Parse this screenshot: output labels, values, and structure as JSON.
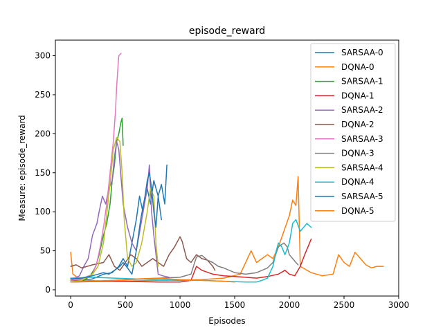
{
  "chart_data": {
    "type": "line",
    "title": "episode_reward",
    "xlabel": "Episodes",
    "ylabel": "Measure: episode_reward",
    "xlim": [
      -140,
      3000
    ],
    "ylim": [
      -8,
      320
    ],
    "xticks": [
      0,
      500,
      1000,
      1500,
      2000,
      2500,
      3000
    ],
    "yticks": [
      0,
      50,
      100,
      150,
      200,
      250,
      300
    ],
    "grid": false,
    "legend_placement": "top-right",
    "series": [
      {
        "name": "SARSAA-0",
        "color": "#1f77b4",
        "points": [
          [
            0,
            12
          ],
          [
            100,
            12
          ],
          [
            200,
            14
          ],
          [
            300,
            20
          ],
          [
            380,
            22
          ],
          [
            440,
            30
          ],
          [
            480,
            40
          ],
          [
            520,
            30
          ],
          [
            560,
            60
          ],
          [
            600,
            90
          ],
          [
            630,
            120
          ],
          [
            660,
            100
          ],
          [
            700,
            130
          ],
          [
            730,
            110
          ],
          [
            760,
            140
          ],
          [
            800,
            120
          ],
          [
            830,
            135
          ],
          [
            860,
            110
          ],
          [
            880,
            160
          ]
        ]
      },
      {
        "name": "DQNA-0",
        "color": "#ff7f0e",
        "points": [
          [
            0,
            48
          ],
          [
            20,
            20
          ],
          [
            100,
            12
          ],
          [
            400,
            11
          ],
          [
            800,
            12
          ],
          [
            1200,
            13
          ],
          [
            1400,
            15
          ],
          [
            1550,
            20
          ],
          [
            1650,
            50
          ],
          [
            1700,
            35
          ],
          [
            1800,
            45
          ],
          [
            1850,
            40
          ],
          [
            1900,
            55
          ],
          [
            1950,
            75
          ],
          [
            2000,
            95
          ],
          [
            2030,
            115
          ],
          [
            2060,
            108
          ],
          [
            2080,
            145
          ],
          [
            2100,
            30
          ],
          [
            2200,
            22
          ],
          [
            2300,
            18
          ],
          [
            2400,
            20
          ],
          [
            2450,
            45
          ],
          [
            2500,
            35
          ],
          [
            2550,
            30
          ],
          [
            2600,
            48
          ],
          [
            2650,
            40
          ],
          [
            2700,
            32
          ],
          [
            2750,
            28
          ],
          [
            2800,
            30
          ],
          [
            2860,
            30
          ]
        ]
      },
      {
        "name": "SARSAA-1",
        "color": "#2ca02c",
        "points": [
          [
            0,
            10
          ],
          [
            120,
            12
          ],
          [
            180,
            18
          ],
          [
            230,
            30
          ],
          [
            260,
            45
          ],
          [
            300,
            70
          ],
          [
            330,
            85
          ],
          [
            360,
            110
          ],
          [
            380,
            140
          ],
          [
            400,
            160
          ],
          [
            420,
            190
          ],
          [
            440,
            200
          ],
          [
            460,
            215
          ],
          [
            470,
            220
          ],
          [
            480,
            185
          ]
        ]
      },
      {
        "name": "DQNA-1",
        "color": "#d62728",
        "points": [
          [
            0,
            10
          ],
          [
            400,
            11
          ],
          [
            800,
            10
          ],
          [
            1000,
            10
          ],
          [
            1100,
            12
          ],
          [
            1150,
            30
          ],
          [
            1200,
            25
          ],
          [
            1300,
            20
          ],
          [
            1400,
            18
          ],
          [
            1500,
            17
          ],
          [
            1600,
            16
          ],
          [
            1700,
            15
          ],
          [
            1800,
            17
          ],
          [
            1900,
            20
          ],
          [
            1960,
            25
          ],
          [
            2000,
            20
          ],
          [
            2050,
            18
          ],
          [
            2100,
            30
          ],
          [
            2140,
            45
          ],
          [
            2170,
            55
          ],
          [
            2200,
            65
          ]
        ]
      },
      {
        "name": "SARSAA-2",
        "color": "#9467bd",
        "points": [
          [
            0,
            12
          ],
          [
            80,
            18
          ],
          [
            120,
            30
          ],
          [
            160,
            40
          ],
          [
            200,
            70
          ],
          [
            240,
            85
          ],
          [
            260,
            100
          ],
          [
            290,
            120
          ],
          [
            320,
            110
          ],
          [
            350,
            130
          ],
          [
            380,
            140
          ],
          [
            400,
            170
          ],
          [
            420,
            190
          ],
          [
            440,
            180
          ],
          [
            480,
            110
          ],
          [
            520,
            80
          ],
          [
            560,
            60
          ],
          [
            600,
            50
          ],
          [
            650,
            90
          ],
          [
            700,
            130
          ],
          [
            720,
            160
          ],
          [
            740,
            100
          ],
          [
            760,
            70
          ],
          [
            800,
            20
          ],
          [
            840,
            18
          ],
          [
            900,
            16
          ]
        ]
      },
      {
        "name": "DQNA-2",
        "color": "#8c564b",
        "points": [
          [
            0,
            30
          ],
          [
            50,
            32
          ],
          [
            100,
            28
          ],
          [
            200,
            32
          ],
          [
            300,
            35
          ],
          [
            350,
            45
          ],
          [
            400,
            30
          ],
          [
            450,
            25
          ],
          [
            500,
            35
          ],
          [
            550,
            45
          ],
          [
            600,
            40
          ],
          [
            650,
            30
          ],
          [
            700,
            35
          ],
          [
            750,
            40
          ],
          [
            800,
            35
          ],
          [
            850,
            30
          ],
          [
            900,
            45
          ],
          [
            950,
            55
          ],
          [
            1000,
            68
          ],
          [
            1020,
            62
          ],
          [
            1060,
            40
          ],
          [
            1100,
            35
          ],
          [
            1150,
            45
          ],
          [
            1200,
            40
          ],
          [
            1250,
            38
          ],
          [
            1300,
            30
          ],
          [
            1320,
            25
          ]
        ]
      },
      {
        "name": "SARSAA-3",
        "color": "#e377c2",
        "points": [
          [
            0,
            12
          ],
          [
            100,
            14
          ],
          [
            200,
            20
          ],
          [
            240,
            35
          ],
          [
            270,
            55
          ],
          [
            300,
            80
          ],
          [
            330,
            110
          ],
          [
            360,
            150
          ],
          [
            390,
            190
          ],
          [
            410,
            230
          ],
          [
            420,
            260
          ],
          [
            430,
            280
          ],
          [
            440,
            300
          ],
          [
            460,
            303
          ]
        ]
      },
      {
        "name": "DQNA-3",
        "color": "#7f7f7f",
        "points": [
          [
            0,
            10
          ],
          [
            400,
            12
          ],
          [
            800,
            15
          ],
          [
            1000,
            16
          ],
          [
            1100,
            20
          ],
          [
            1150,
            42
          ],
          [
            1200,
            44
          ],
          [
            1250,
            38
          ],
          [
            1300,
            35
          ],
          [
            1350,
            30
          ],
          [
            1400,
            28
          ],
          [
            1450,
            25
          ],
          [
            1500,
            22
          ],
          [
            1600,
            20
          ],
          [
            1700,
            22
          ],
          [
            1800,
            28
          ],
          [
            1850,
            35
          ],
          [
            1900,
            55
          ],
          [
            1950,
            60
          ],
          [
            1980,
            55
          ],
          [
            2000,
            45
          ],
          [
            2030,
            40
          ],
          [
            2060,
            35
          ],
          [
            2080,
            32
          ]
        ]
      },
      {
        "name": "SARSAA-4",
        "color": "#bcbd22",
        "points": [
          [
            0,
            10
          ],
          [
            100,
            12
          ],
          [
            200,
            20
          ],
          [
            250,
            30
          ],
          [
            300,
            60
          ],
          [
            340,
            110
          ],
          [
            370,
            150
          ],
          [
            390,
            180
          ],
          [
            420,
            195
          ],
          [
            450,
            190
          ],
          [
            470,
            150
          ],
          [
            490,
            90
          ],
          [
            520,
            40
          ],
          [
            560,
            30
          ],
          [
            600,
            35
          ],
          [
            650,
            60
          ],
          [
            700,
            100
          ],
          [
            730,
            130
          ],
          [
            760,
            120
          ],
          [
            780,
            60
          ],
          [
            800,
            30
          ]
        ]
      },
      {
        "name": "DQNA-4",
        "color": "#17becf",
        "points": [
          [
            0,
            15
          ],
          [
            200,
            16
          ],
          [
            400,
            15
          ],
          [
            600,
            14
          ],
          [
            800,
            13
          ],
          [
            1000,
            12
          ],
          [
            1200,
            12
          ],
          [
            1400,
            11
          ],
          [
            1600,
            10
          ],
          [
            1700,
            10
          ],
          [
            1750,
            12
          ],
          [
            1800,
            15
          ],
          [
            1850,
            30
          ],
          [
            1880,
            50
          ],
          [
            1900,
            60
          ],
          [
            1930,
            55
          ],
          [
            1960,
            45
          ],
          [
            2000,
            60
          ],
          [
            2030,
            85
          ],
          [
            2060,
            90
          ],
          [
            2100,
            75
          ],
          [
            2130,
            80
          ],
          [
            2160,
            85
          ],
          [
            2200,
            80
          ]
        ]
      },
      {
        "name": "SARSAA-5",
        "color": "#1f77b4",
        "points": [
          [
            0,
            14
          ],
          [
            100,
            15
          ],
          [
            200,
            18
          ],
          [
            300,
            22
          ],
          [
            350,
            20
          ],
          [
            400,
            25
          ],
          [
            450,
            30
          ],
          [
            480,
            35
          ],
          [
            520,
            28
          ],
          [
            560,
            20
          ],
          [
            600,
            50
          ],
          [
            640,
            90
          ],
          [
            680,
            120
          ],
          [
            700,
            140
          ],
          [
            720,
            150
          ],
          [
            740,
            130
          ],
          [
            760,
            100
          ],
          [
            780,
            80
          ],
          [
            800,
            120
          ],
          [
            830,
            90
          ]
        ]
      },
      {
        "name": "DQNA-5",
        "color": "#ff7f0e",
        "points": [
          [
            0,
            10
          ],
          [
            200,
            11
          ],
          [
            400,
            12
          ],
          [
            600,
            14
          ],
          [
            800,
            15
          ],
          [
            1000,
            13
          ],
          [
            1200,
            12
          ],
          [
            1400,
            11
          ],
          [
            1500,
            10
          ]
        ]
      }
    ]
  }
}
